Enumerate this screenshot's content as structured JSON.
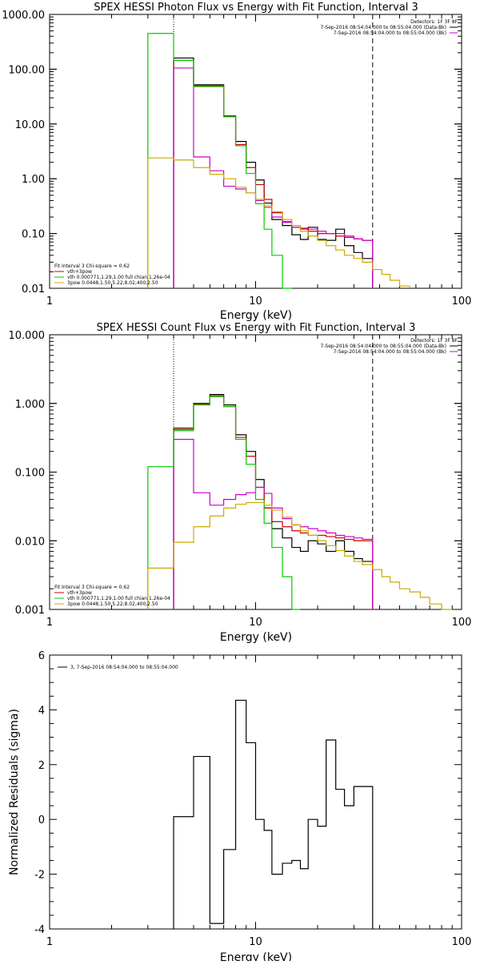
{
  "chart_data": [
    {
      "type": "line",
      "title": "SPEX HESSI Photon Flux vs Energy with Fit Function, Interval 3",
      "xlabel": "Energy (keV)",
      "ylabel": "",
      "xscale": "log",
      "yscale": "log",
      "xlim": [
        1,
        100
      ],
      "ylim": [
        0.01,
        1000
      ],
      "xticks": [
        "1",
        "10",
        "100"
      ],
      "yticks": [
        "0.01",
        "0.10",
        "1.00",
        "10.00",
        "100.00",
        "1000.00"
      ],
      "vlines": {
        "dotted": 4.0,
        "dashed": 37.0
      },
      "bin_edges": [
        3.0,
        4.0,
        5.0,
        6.0,
        7.0,
        8.0,
        9.0,
        10.0,
        11.0,
        12.0,
        13.5,
        15.0,
        16.5,
        18.0,
        20.0,
        22.0,
        24.5,
        27.0,
        30.0,
        33.0,
        37.0,
        41.0,
        45.0,
        50.0,
        56.0
      ],
      "legend_top": {
        "title": "Detectors: 1F 3F 8F",
        "entries": [
          {
            "text": "7-Sep-2016 08:54:04.000 to 08:55:04.000 (Data-Bk)",
            "color": "#000000"
          },
          {
            "text": "7-Sep-2016 08:54:04.000 to 08:55:04.000 (Bk)",
            "color": "#cc00cc"
          }
        ]
      },
      "legend_bottom": {
        "title": "Fit Interval 3   Chi-square = 0.62",
        "entries": [
          {
            "text": "vth+3pow",
            "color": "#cc0000"
          },
          {
            "text": "vth 0.000771,1.29,1.00  full chian 1.26e-04",
            "color": "#00cc00"
          },
          {
            "text": "3pow 0.0448,1.50,5.22,8.02,400,2.50",
            "color": "#ccaa00"
          }
        ]
      },
      "series": [
        {
          "color": "#000000",
          "values": [
            null,
            160,
            52,
            52,
            14,
            4.8,
            2.0,
            0.95,
            0.36,
            0.18,
            0.14,
            0.095,
            0.078,
            0.13,
            0.078,
            0.075,
            0.12,
            0.06,
            0.045,
            0.035
          ]
        },
        {
          "color": "#cc0000",
          "values": [
            null,
            145,
            50,
            50,
            13.5,
            4.2,
            1.6,
            0.78,
            0.42,
            0.24,
            0.165,
            0.13,
            0.125,
            0.11,
            0.1,
            0.1,
            0.09,
            0.085,
            0.08,
            0.075
          ]
        },
        {
          "color": "#cc00cc",
          "values": [
            null,
            105,
            2.5,
            1.4,
            0.73,
            0.65,
            0.55,
            0.4,
            0.3,
            0.2,
            0.16,
            0.13,
            0.12,
            0.12,
            0.11,
            0.1,
            0.1,
            0.09,
            0.08,
            0.075
          ]
        },
        {
          "color": "#00cc00",
          "values": [
            450,
            145,
            48,
            48,
            13.5,
            4.0,
            1.25,
            0.35,
            0.12,
            0.04,
            0.01,
            null,
            null,
            null,
            null,
            null,
            null,
            null,
            null,
            null
          ]
        },
        {
          "color": "#ccaa00",
          "values": [
            2.4,
            2.2,
            1.6,
            1.2,
            1.0,
            0.7,
            0.55,
            0.42,
            0.32,
            0.25,
            0.18,
            0.14,
            0.11,
            0.09,
            0.075,
            0.06,
            0.05,
            0.04,
            0.035,
            0.03,
            0.022,
            0.018,
            0.014,
            0.011
          ]
        }
      ]
    },
    {
      "type": "line",
      "title": "SPEX HESSI Count Flux vs Energy with Fit Function, Interval 3",
      "xlabel": "Energy (keV)",
      "ylabel": "",
      "xscale": "log",
      "yscale": "log",
      "xlim": [
        1,
        100
      ],
      "ylim": [
        0.001,
        10
      ],
      "xticks": [
        "1",
        "10",
        "100"
      ],
      "yticks": [
        "0.001",
        "0.010",
        "0.100",
        "1.000",
        "10.000"
      ],
      "vlines": {
        "dotted": 4.0,
        "dashed": 37.0
      },
      "bin_edges": [
        3.0,
        4.0,
        5.0,
        6.0,
        7.0,
        8.0,
        9.0,
        10.0,
        11.0,
        12.0,
        13.5,
        15.0,
        16.5,
        18.0,
        20.0,
        22.0,
        24.5,
        27.0,
        30.0,
        33.0,
        37.0,
        41.0,
        45.0,
        50.0,
        56.0,
        63.0,
        70.0,
        80.0,
        90.0
      ],
      "legend_top": {
        "title": "Detectors: 1F 3F 8F",
        "entries": [
          {
            "text": "7-Sep-2016 08:54:04.000 to 08:55:04.000 (Data-Bk)",
            "color": "#000000"
          },
          {
            "text": "7-Sep-2016 08:54:04.000 to 08:55:04.000 (Bk)",
            "color": "#cc00cc"
          }
        ]
      },
      "legend_bottom": {
        "title": "Fit Interval 3   Chi-square = 0.62",
        "entries": [
          {
            "text": "vth+3pow",
            "color": "#cc0000"
          },
          {
            "text": "vth 0.000771,1.29,1.00  full chian 1.26e-04",
            "color": "#00cc00"
          },
          {
            "text": "3pow 0.0448,1.50,5.22,8.02,400,2.50",
            "color": "#ccaa00"
          }
        ]
      },
      "series": [
        {
          "color": "#000000",
          "values": [
            null,
            0.42,
            1.0,
            1.35,
            0.95,
            0.35,
            0.2,
            0.078,
            0.03,
            0.015,
            0.011,
            0.008,
            0.007,
            0.01,
            0.009,
            0.007,
            0.01,
            0.007,
            0.0055,
            0.005
          ]
        },
        {
          "color": "#cc0000",
          "values": [
            null,
            0.44,
            0.98,
            1.3,
            0.9,
            0.32,
            0.17,
            0.06,
            0.03,
            0.019,
            0.016,
            0.014,
            0.013,
            0.012,
            0.012,
            0.0115,
            0.011,
            0.0105,
            0.01,
            0.01
          ]
        },
        {
          "color": "#cc00cc",
          "values": [
            null,
            0.3,
            0.05,
            0.033,
            0.04,
            0.047,
            0.05,
            0.06,
            0.049,
            0.03,
            0.021,
            0.017,
            0.016,
            0.015,
            0.014,
            0.013,
            0.012,
            0.0115,
            0.011,
            0.0105
          ]
        },
        {
          "color": "#00cc00",
          "values": [
            0.12,
            0.4,
            0.95,
            1.25,
            0.9,
            0.3,
            0.13,
            0.04,
            0.018,
            0.008,
            0.003,
            0.001,
            null,
            null,
            null,
            null,
            null,
            null,
            null,
            null
          ]
        },
        {
          "color": "#ccaa00",
          "values": [
            0.004,
            0.0095,
            0.016,
            0.023,
            0.03,
            0.034,
            0.036,
            0.036,
            0.033,
            0.028,
            0.022,
            0.017,
            0.014,
            0.012,
            0.01,
            0.0085,
            0.0072,
            0.006,
            0.005,
            0.0045,
            0.0038,
            0.003,
            0.0025,
            0.002,
            0.0018,
            0.0015,
            0.0012,
            0.001
          ]
        }
      ]
    },
    {
      "type": "line",
      "title": "",
      "xlabel": "Energy (keV)",
      "ylabel": "Normalized Residuals (sigma)",
      "xscale": "log",
      "yscale": "linear",
      "xlim": [
        1,
        100
      ],
      "ylim": [
        -4,
        6
      ],
      "xticks": [
        "1",
        "10",
        "100"
      ],
      "yticks": [
        "-4",
        "-2",
        "0",
        "2",
        "4",
        "6"
      ],
      "legend_top": {
        "title": "",
        "entries": [
          {
            "text": "3, 7-Sep-2016 08:54:04.000 to 08:55:04.000",
            "color": "#000000"
          }
        ]
      },
      "bin_edges": [
        4.0,
        5.0,
        6.0,
        7.0,
        8.0,
        9.0,
        10.0,
        11.0,
        12.0,
        13.5,
        15.0,
        16.5,
        18.0,
        20.0,
        22.0,
        24.5,
        27.0,
        30.0,
        33.0,
        37.0
      ],
      "series": [
        {
          "color": "#000000",
          "values": [
            0.1,
            2.3,
            -3.8,
            -1.1,
            4.35,
            2.8,
            0.0,
            -0.4,
            -2.0,
            -1.6,
            -1.5,
            -1.8,
            0.0,
            -0.25,
            2.9,
            1.1,
            0.5,
            1.2,
            1.2
          ]
        }
      ]
    }
  ]
}
